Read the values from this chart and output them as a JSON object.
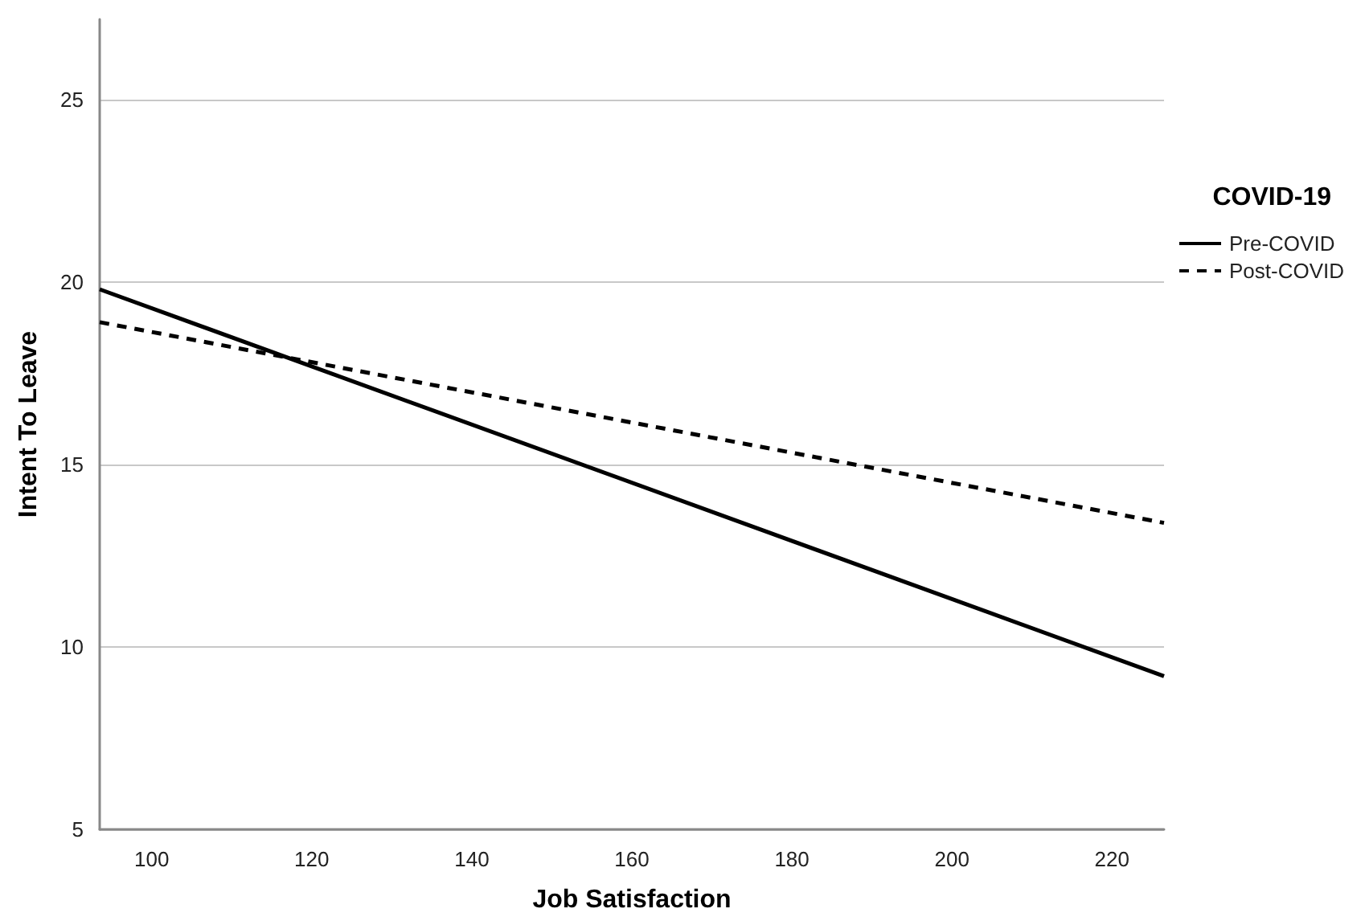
{
  "chart_data": {
    "type": "line",
    "xlabel": "Job Satisfaction",
    "ylabel": "Intent To Leave",
    "legend_title": "COVID-19",
    "series": [
      {
        "name": "Pre-COVID",
        "color": "#000000",
        "values": [
          19.8,
          9.2
        ],
        "line_style": "solid"
      },
      {
        "name": "Post-COVID",
        "color": "#000000",
        "values": [
          18.9,
          13.4
        ],
        "line_style": "dashed"
      }
    ],
    "x": [
      93.5,
      226.5
    ],
    "xlim": [
      93.5,
      226.5
    ],
    "xticks": [
      100,
      120,
      140,
      160,
      180,
      200,
      220
    ],
    "ylim": [
      5,
      27.2
    ],
    "yticks": [
      5,
      10,
      15,
      20,
      25
    ],
    "grid": "y",
    "legend": "right",
    "marker": "none"
  }
}
